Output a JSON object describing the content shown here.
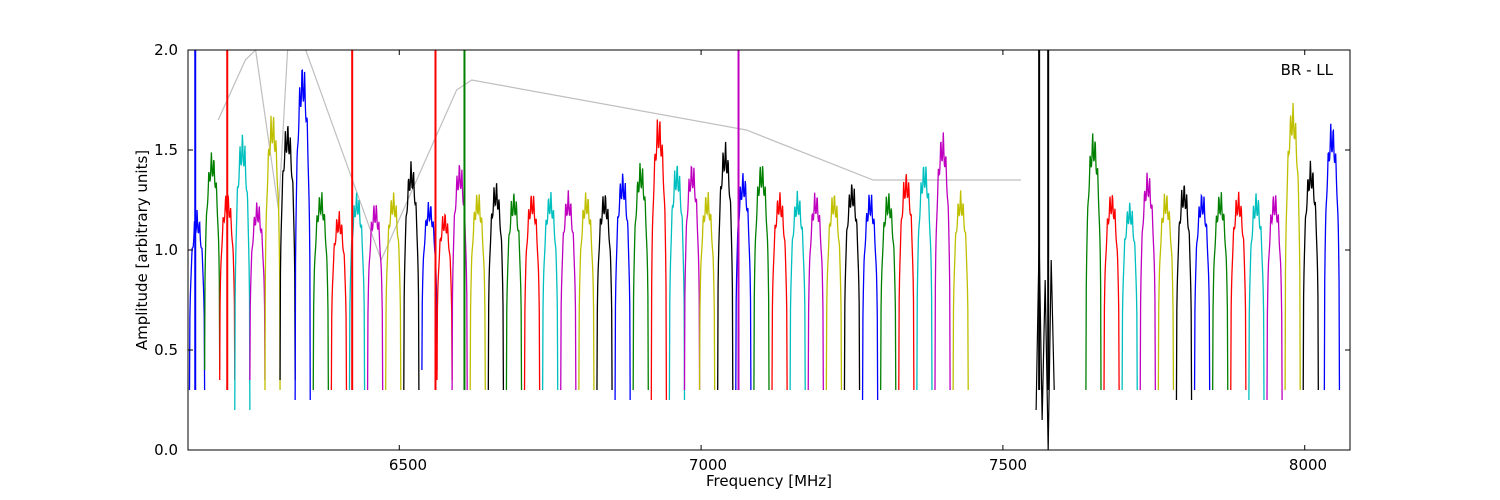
{
  "chart_data": {
    "type": "line",
    "title": "",
    "annotation": "BR - LL",
    "xlabel": "Frequency [MHz]",
    "ylabel": "Amplitude [arbitrary units]",
    "xlim": [
      6150,
      8075
    ],
    "ylim": [
      0.0,
      2.0
    ],
    "xticks": [
      6500,
      7000,
      7500,
      8000
    ],
    "xtick_labels": [
      "6500",
      "7000",
      "7500",
      "8000"
    ],
    "yticks": [
      0.0,
      0.5,
      1.0,
      1.5,
      2.0
    ],
    "ytick_labels": [
      "0.0",
      "0.5",
      "1.0",
      "1.5",
      "2.0"
    ],
    "grid": false,
    "legend": "none",
    "background_series_color": "#bfbfbf",
    "color_cycle": [
      "#0000ff",
      "#008000",
      "#ff0000",
      "#00bfbf",
      "#bf00bf",
      "#bfbf00",
      "#000000"
    ],
    "channel_width_mhz": 25,
    "series": [
      {
        "color": "#bfbfbf",
        "values": [
          {
            "x": 6200,
            "y": 1.65
          },
          {
            "x": 6245,
            "y": 1.95
          },
          {
            "x": 6262,
            "y": 2.0
          },
          {
            "x": 6300,
            "y": 1.2
          },
          {
            "x": 6315,
            "y": 2.0
          },
          {
            "x": 6345,
            "y": 2.0
          },
          {
            "x": 6470,
            "y": 0.95
          },
          {
            "x": 6595,
            "y": 1.8
          },
          {
            "x": 6620,
            "y": 1.85
          },
          {
            "x": 7075,
            "y": 1.6
          },
          {
            "x": 7285,
            "y": 1.35
          },
          {
            "x": 7530,
            "y": 1.35
          }
        ]
      },
      {
        "color": "#000000",
        "values": [
          {
            "x": 7555,
            "y": 0.2
          },
          {
            "x": 7560,
            "y": 1.05
          },
          {
            "x": 7565,
            "y": 0.15
          },
          {
            "x": 7570,
            "y": 0.85
          },
          {
            "x": 7575,
            "y": 0.0
          },
          {
            "x": 7580,
            "y": 0.95
          },
          {
            "x": 7585,
            "y": 0.3
          }
        ]
      }
    ],
    "spikes": [
      {
        "x": 6162,
        "y": 2.0,
        "color": "#0000ff"
      },
      {
        "x": 6215,
        "y": 2.0,
        "color": "#ff0000"
      },
      {
        "x": 6422,
        "y": 2.0,
        "color": "#ff0000"
      },
      {
        "x": 6560,
        "y": 2.0,
        "color": "#ff0000"
      },
      {
        "x": 6608,
        "y": 2.0,
        "color": "#008000"
      },
      {
        "x": 7062,
        "y": 2.0,
        "color": "#bf00bf"
      },
      {
        "x": 7560,
        "y": 2.0,
        "color": "#000000"
      },
      {
        "x": 7575,
        "y": 2.0,
        "color": "#000000"
      }
    ],
    "channel_peaks": [
      {
        "x": 6165,
        "y": 1.2,
        "min": 0.3,
        "color": "#0000ff"
      },
      {
        "x": 6190,
        "y": 1.5,
        "min": 0.4,
        "color": "#008000"
      },
      {
        "x": 6215,
        "y": 1.3,
        "min": 0.35,
        "color": "#ff0000"
      },
      {
        "x": 6240,
        "y": 1.6,
        "min": 0.2,
        "color": "#00bfbf"
      },
      {
        "x": 6265,
        "y": 1.25,
        "min": 0.35,
        "color": "#bf00bf"
      },
      {
        "x": 6290,
        "y": 1.7,
        "min": 0.3,
        "color": "#bfbf00"
      },
      {
        "x": 6315,
        "y": 1.65,
        "min": 0.35,
        "color": "#000000"
      },
      {
        "x": 6340,
        "y": 1.95,
        "min": 0.25,
        "color": "#0000ff"
      },
      {
        "x": 6370,
        "y": 1.3,
        "min": 0.3,
        "color": "#008000"
      },
      {
        "x": 6400,
        "y": 1.2,
        "min": 0.3,
        "color": "#ff0000"
      },
      {
        "x": 6430,
        "y": 1.3,
        "min": 0.3,
        "color": "#00bfbf"
      },
      {
        "x": 6460,
        "y": 1.25,
        "min": 0.3,
        "color": "#bf00bf"
      },
      {
        "x": 6490,
        "y": 1.3,
        "min": 0.3,
        "color": "#bfbf00"
      },
      {
        "x": 6520,
        "y": 1.45,
        "min": 0.3,
        "color": "#000000"
      },
      {
        "x": 6550,
        "y": 1.25,
        "min": 0.4,
        "color": "#0000ff"
      },
      {
        "x": 6575,
        "y": 1.2,
        "min": 0.35,
        "color": "#ff0000"
      },
      {
        "x": 6600,
        "y": 1.45,
        "min": 0.3,
        "color": "#bf00bf"
      },
      {
        "x": 6630,
        "y": 1.3,
        "min": 0.3,
        "color": "#bfbf00"
      },
      {
        "x": 6660,
        "y": 1.35,
        "min": 0.3,
        "color": "#000000"
      },
      {
        "x": 6690,
        "y": 1.3,
        "min": 0.3,
        "color": "#008000"
      },
      {
        "x": 6720,
        "y": 1.3,
        "min": 0.3,
        "color": "#ff0000"
      },
      {
        "x": 6750,
        "y": 1.3,
        "min": 0.3,
        "color": "#00bfbf"
      },
      {
        "x": 6780,
        "y": 1.3,
        "min": 0.3,
        "color": "#bf00bf"
      },
      {
        "x": 6810,
        "y": 1.3,
        "min": 0.3,
        "color": "#bfbf00"
      },
      {
        "x": 6840,
        "y": 1.3,
        "min": 0.3,
        "color": "#000000"
      },
      {
        "x": 6870,
        "y": 1.4,
        "min": 0.25,
        "color": "#0000ff"
      },
      {
        "x": 6900,
        "y": 1.45,
        "min": 0.3,
        "color": "#008000"
      },
      {
        "x": 6930,
        "y": 1.68,
        "min": 0.25,
        "color": "#ff0000"
      },
      {
        "x": 6960,
        "y": 1.45,
        "min": 0.25,
        "color": "#00bfbf"
      },
      {
        "x": 6985,
        "y": 1.45,
        "min": 0.3,
        "color": "#bf00bf"
      },
      {
        "x": 7010,
        "y": 1.3,
        "min": 0.3,
        "color": "#bfbf00"
      },
      {
        "x": 7040,
        "y": 1.55,
        "min": 0.3,
        "color": "#000000"
      },
      {
        "x": 7070,
        "y": 1.4,
        "min": 0.3,
        "color": "#0000ff"
      },
      {
        "x": 7100,
        "y": 1.45,
        "min": 0.3,
        "color": "#008000"
      },
      {
        "x": 7130,
        "y": 1.3,
        "min": 0.3,
        "color": "#ff0000"
      },
      {
        "x": 7160,
        "y": 1.3,
        "min": 0.3,
        "color": "#00bfbf"
      },
      {
        "x": 7190,
        "y": 1.3,
        "min": 0.3,
        "color": "#bf00bf"
      },
      {
        "x": 7220,
        "y": 1.3,
        "min": 0.3,
        "color": "#bfbf00"
      },
      {
        "x": 7250,
        "y": 1.35,
        "min": 0.3,
        "color": "#000000"
      },
      {
        "x": 7280,
        "y": 1.3,
        "min": 0.25,
        "color": "#0000ff"
      },
      {
        "x": 7310,
        "y": 1.3,
        "min": 0.3,
        "color": "#008000"
      },
      {
        "x": 7340,
        "y": 1.4,
        "min": 0.3,
        "color": "#ff0000"
      },
      {
        "x": 7370,
        "y": 1.45,
        "min": 0.3,
        "color": "#00bfbf"
      },
      {
        "x": 7400,
        "y": 1.6,
        "min": 0.3,
        "color": "#bf00bf"
      },
      {
        "x": 7430,
        "y": 1.3,
        "min": 0.3,
        "color": "#bfbf00"
      },
      {
        "x": 7650,
        "y": 1.6,
        "min": 0.3,
        "color": "#008000"
      },
      {
        "x": 7680,
        "y": 1.3,
        "min": 0.3,
        "color": "#ff0000"
      },
      {
        "x": 7710,
        "y": 1.25,
        "min": 0.3,
        "color": "#00bfbf"
      },
      {
        "x": 7740,
        "y": 1.4,
        "min": 0.3,
        "color": "#bf00bf"
      },
      {
        "x": 7770,
        "y": 1.3,
        "min": 0.3,
        "color": "#bfbf00"
      },
      {
        "x": 7800,
        "y": 1.35,
        "min": 0.25,
        "color": "#000000"
      },
      {
        "x": 7830,
        "y": 1.3,
        "min": 0.3,
        "color": "#0000ff"
      },
      {
        "x": 7860,
        "y": 1.3,
        "min": 0.3,
        "color": "#008000"
      },
      {
        "x": 7890,
        "y": 1.3,
        "min": 0.3,
        "color": "#ff0000"
      },
      {
        "x": 7920,
        "y": 1.3,
        "min": 0.25,
        "color": "#00bfbf"
      },
      {
        "x": 7950,
        "y": 1.3,
        "min": 0.25,
        "color": "#bf00bf"
      },
      {
        "x": 7980,
        "y": 1.75,
        "min": 0.3,
        "color": "#bfbf00"
      },
      {
        "x": 8010,
        "y": 1.45,
        "min": 0.3,
        "color": "#000000"
      },
      {
        "x": 8045,
        "y": 1.65,
        "min": 0.3,
        "color": "#0000ff"
      }
    ]
  }
}
